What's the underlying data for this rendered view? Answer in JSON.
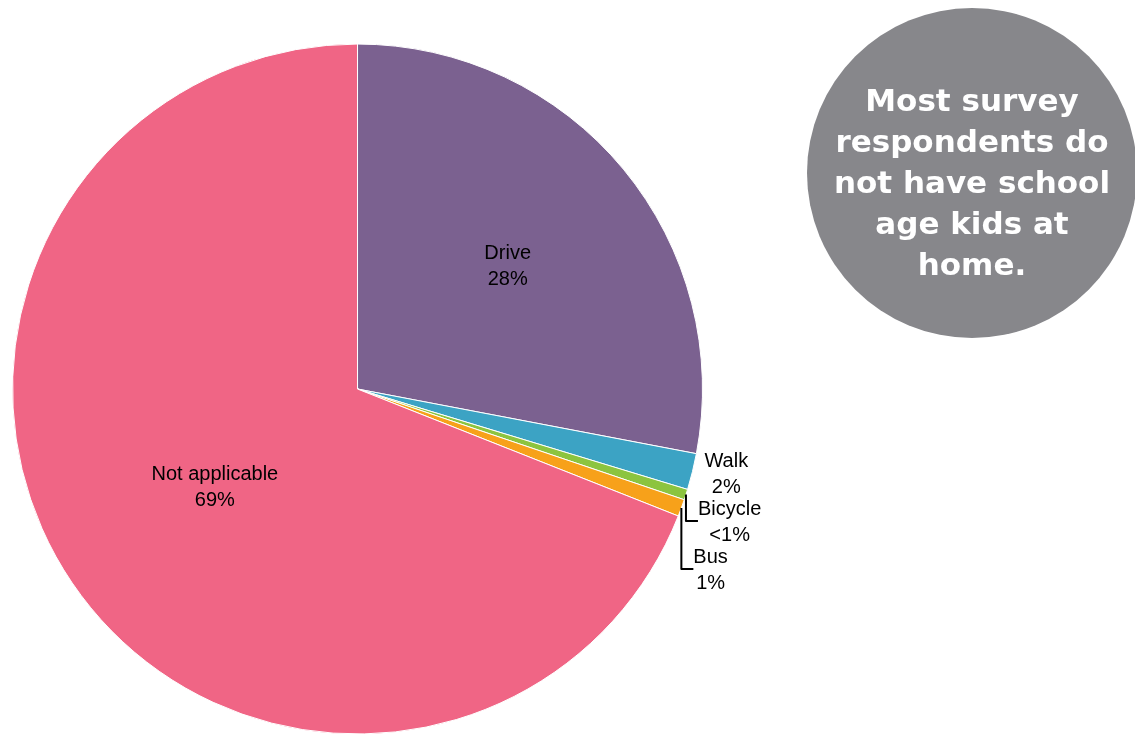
{
  "chart_data": {
    "type": "pie",
    "categories": [
      "Drive",
      "Walk",
      "Bicycle",
      "Bus",
      "Not applicable"
    ],
    "values": [
      28,
      1.7,
      0.5,
      0.8,
      69
    ],
    "value_labels": [
      "28%",
      "2%",
      "<1%",
      "1%",
      "69%"
    ],
    "colors": [
      "#7b6190",
      "#3ca3c4",
      "#8cc43f",
      "#f7a11a",
      "#f06585"
    ],
    "annotations": [
      "Most survey respondents do not have school age kids at home."
    ]
  }
}
